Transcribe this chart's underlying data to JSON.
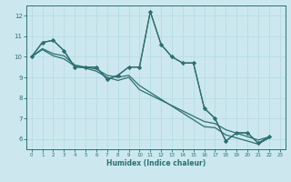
{
  "xlabel": "Humidex (Indice chaleur)",
  "bg_color": "#cce8ee",
  "line_color": "#2d7070",
  "grid_color": "#b8dde6",
  "xlim": [
    -0.5,
    23.5
  ],
  "ylim": [
    5.5,
    12.5
  ],
  "yticks": [
    6,
    7,
    8,
    9,
    10,
    11,
    12
  ],
  "xticks": [
    0,
    1,
    2,
    3,
    4,
    5,
    6,
    7,
    8,
    9,
    10,
    11,
    12,
    13,
    14,
    15,
    16,
    17,
    18,
    19,
    20,
    21,
    22,
    23
  ],
  "s1_x": [
    0,
    1,
    2,
    3,
    4,
    5,
    6,
    7,
    8,
    9,
    10,
    11,
    12,
    13,
    14,
    15,
    16,
    17,
    18,
    19,
    20,
    21,
    22
  ],
  "s1_y": [
    10.0,
    10.7,
    10.8,
    10.3,
    9.5,
    9.5,
    9.5,
    8.9,
    9.1,
    9.5,
    9.5,
    12.2,
    10.6,
    10.0,
    9.7,
    9.7,
    7.5,
    7.0,
    5.9,
    6.3,
    6.3,
    5.8,
    6.1
  ],
  "s2_x": [
    0,
    1,
    2,
    3,
    4,
    5,
    6,
    7,
    8,
    9,
    10,
    11,
    12,
    13,
    14,
    15,
    16,
    17,
    18,
    19,
    20,
    21,
    22
  ],
  "s2_y": [
    10.0,
    10.7,
    10.8,
    10.3,
    9.5,
    9.5,
    9.5,
    8.9,
    9.1,
    9.5,
    9.5,
    12.2,
    10.6,
    10.0,
    9.7,
    9.7,
    7.5,
    7.0,
    5.9,
    6.3,
    6.3,
    5.8,
    6.1
  ],
  "s3_x": [
    0,
    1,
    2,
    3,
    4,
    5,
    6,
    7,
    8,
    9,
    10,
    16,
    17,
    18,
    21,
    22
  ],
  "s3_y": [
    10.0,
    10.4,
    10.15,
    10.05,
    9.6,
    9.5,
    9.4,
    9.1,
    9.0,
    9.1,
    8.6,
    6.6,
    6.55,
    6.2,
    5.75,
    6.05
  ],
  "s4_x": [
    0,
    1,
    2,
    3,
    4,
    5,
    6,
    7,
    8,
    9,
    10,
    16,
    17,
    18,
    21,
    22
  ],
  "s4_y": [
    10.0,
    10.35,
    10.05,
    9.9,
    9.55,
    9.45,
    9.3,
    9.0,
    8.85,
    9.0,
    8.4,
    6.85,
    6.75,
    6.45,
    5.95,
    6.1
  ]
}
